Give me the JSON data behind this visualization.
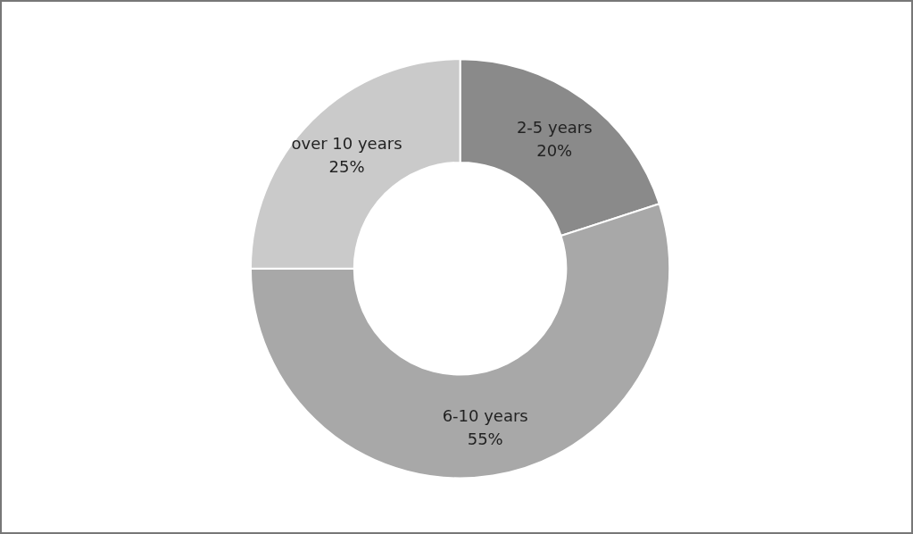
{
  "chart_data": {
    "type": "donut",
    "categories": [
      "2-5 years",
      "6-10 years",
      "over 10 years"
    ],
    "values": [
      20,
      55,
      25
    ],
    "value_labels": [
      "20%",
      "55%",
      "25%"
    ],
    "colors": [
      "#8a8a8a",
      "#a8a8a8",
      "#cacaca"
    ],
    "legend": false
  }
}
